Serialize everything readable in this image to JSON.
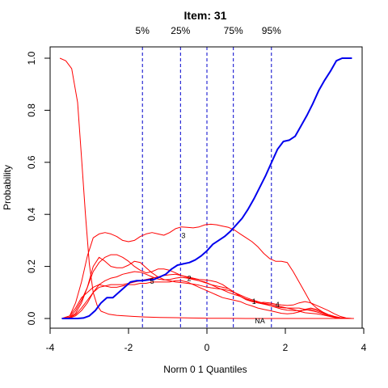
{
  "chart_data": {
    "type": "line",
    "title": "Item:  31",
    "xlabel": "Norm 0 1 Quantiles",
    "ylabel": "Probability",
    "xlim": [
      -4,
      4
    ],
    "ylim": [
      0,
      1
    ],
    "x_ticks": [
      -4,
      -2,
      0,
      2,
      4
    ],
    "y_ticks": [
      0.0,
      0.2,
      0.4,
      0.6,
      0.8,
      1.0
    ],
    "grid": false,
    "quantile_lines": [
      {
        "label": "5%",
        "x": -1.645,
        "color": "#0000cc"
      },
      {
        "label": "25%",
        "x": -0.674,
        "color": "#0000cc"
      },
      {
        "label": "",
        "x": 0.0,
        "color": "#0000cc"
      },
      {
        "label": "75%",
        "x": 0.674,
        "color": "#0000cc"
      },
      {
        "label": "95%",
        "x": 1.645,
        "color": "#0000cc"
      }
    ],
    "series": [
      {
        "label": "",
        "color": "#0000ee",
        "bold": true,
        "x": [
          -3.7,
          -3.5,
          -3.3,
          -3.15,
          -3.0,
          -2.85,
          -2.7,
          -2.55,
          -2.4,
          -2.25,
          -2.1,
          -1.95,
          -1.8,
          -1.65,
          -1.5,
          -1.35,
          -1.2,
          -1.05,
          -0.9,
          -0.75,
          -0.6,
          -0.45,
          -0.3,
          -0.15,
          0.0,
          0.15,
          0.3,
          0.45,
          0.6,
          0.75,
          0.9,
          1.05,
          1.2,
          1.35,
          1.5,
          1.65,
          1.8,
          1.95,
          2.1,
          2.25,
          2.4,
          2.55,
          2.7,
          2.85,
          3.0,
          3.15,
          3.3,
          3.45,
          3.6,
          3.7
        ],
        "y": [
          0.0,
          0.0,
          0.0,
          0.002,
          0.01,
          0.03,
          0.06,
          0.08,
          0.08,
          0.1,
          0.12,
          0.14,
          0.145,
          0.145,
          0.148,
          0.15,
          0.16,
          0.17,
          0.19,
          0.205,
          0.21,
          0.215,
          0.225,
          0.24,
          0.26,
          0.285,
          0.3,
          0.315,
          0.335,
          0.36,
          0.385,
          0.42,
          0.46,
          0.505,
          0.55,
          0.6,
          0.65,
          0.68,
          0.685,
          0.7,
          0.74,
          0.78,
          0.825,
          0.875,
          0.915,
          0.95,
          0.99,
          1.0,
          1.0,
          1.0
        ]
      },
      {
        "label": "",
        "color": "#ff0000",
        "x": [
          -3.75,
          -3.6,
          -3.45,
          -3.3,
          -3.2,
          -3.1,
          -3.0,
          -2.9,
          -2.8,
          -2.7,
          -2.5,
          -2.3,
          -2.1,
          -1.9,
          -1.6,
          -1.2,
          -0.8,
          -0.4,
          0.0,
          0.5,
          1.0,
          1.5,
          2.0,
          2.5,
          3.0,
          3.5,
          3.75
        ],
        "y": [
          1.0,
          0.99,
          0.96,
          0.83,
          0.62,
          0.4,
          0.21,
          0.1,
          0.05,
          0.028,
          0.016,
          0.012,
          0.01,
          0.008,
          0.006,
          0.004,
          0.003,
          0.002,
          0.001,
          0.001,
          0.0,
          0.0,
          0.0,
          0.0,
          0.0,
          0.0,
          0.0
        ]
      },
      {
        "label": "NA",
        "label_at": [
          1.35,
          -0.01
        ],
        "color": "#ff0000",
        "x": [
          -3.7,
          -3.5,
          -3.35,
          -3.2,
          -3.05,
          -2.9,
          -2.75,
          -2.6,
          -2.45,
          -2.3,
          -2.15,
          -2.0,
          -1.85,
          -1.7,
          -1.55,
          -1.4,
          -1.25,
          -1.1,
          -0.95,
          -0.8,
          -0.65,
          -0.5,
          -0.35,
          -0.2,
          -0.05,
          0.1,
          0.25,
          0.4,
          0.55,
          0.7,
          0.85,
          1.0,
          1.15,
          1.3,
          1.45,
          1.6,
          1.75,
          1.9,
          2.05,
          2.2,
          2.35,
          2.5,
          2.65,
          2.8,
          2.95,
          3.1,
          3.25,
          3.4,
          3.55,
          3.7
        ],
        "y": [
          0.0,
          0.01,
          0.04,
          0.08,
          0.1,
          0.12,
          0.13,
          0.125,
          0.12,
          0.12,
          0.125,
          0.13,
          0.13,
          0.135,
          0.135,
          0.14,
          0.14,
          0.14,
          0.14,
          0.145,
          0.145,
          0.14,
          0.13,
          0.12,
          0.11,
          0.1,
          0.09,
          0.08,
          0.075,
          0.07,
          0.065,
          0.055,
          0.048,
          0.04,
          0.035,
          0.03,
          0.025,
          0.02,
          0.018,
          0.02,
          0.025,
          0.035,
          0.04,
          0.035,
          0.025,
          0.015,
          0.008,
          0.003,
          0.001,
          0.0
        ]
      },
      {
        "label": "3",
        "label_at": [
          -0.6,
          0.318
        ],
        "color": "#ff0000",
        "x": [
          -3.7,
          -3.5,
          -3.35,
          -3.2,
          -3.05,
          -2.9,
          -2.75,
          -2.6,
          -2.45,
          -2.3,
          -2.15,
          -2.0,
          -1.85,
          -1.7,
          -1.55,
          -1.4,
          -1.25,
          -1.1,
          -0.95,
          -0.8,
          -0.65,
          -0.5,
          -0.35,
          -0.2,
          -0.05,
          0.1,
          0.25,
          0.4,
          0.55,
          0.7,
          0.85,
          1.0,
          1.15,
          1.3,
          1.45,
          1.6,
          1.75,
          1.9,
          2.05,
          2.2,
          2.35,
          2.5,
          2.65,
          2.8,
          2.95,
          3.1,
          3.25,
          3.4,
          3.55,
          3.7
        ],
        "y": [
          0.0,
          0.01,
          0.06,
          0.14,
          0.24,
          0.31,
          0.325,
          0.33,
          0.325,
          0.315,
          0.3,
          0.295,
          0.3,
          0.315,
          0.325,
          0.33,
          0.325,
          0.32,
          0.33,
          0.345,
          0.352,
          0.35,
          0.348,
          0.352,
          0.36,
          0.362,
          0.36,
          0.355,
          0.35,
          0.34,
          0.325,
          0.31,
          0.295,
          0.275,
          0.25,
          0.23,
          0.22,
          0.22,
          0.215,
          0.18,
          0.14,
          0.1,
          0.06,
          0.04,
          0.025,
          0.012,
          0.005,
          0.002,
          0.0,
          0.0
        ]
      },
      {
        "label": "2",
        "label_at": [
          -0.45,
          0.153
        ],
        "color": "#ff0000",
        "x": [
          -3.7,
          -3.5,
          -3.35,
          -3.2,
          -3.05,
          -2.9,
          -2.75,
          -2.6,
          -2.45,
          -2.3,
          -2.15,
          -2.0,
          -1.85,
          -1.7,
          -1.55,
          -1.4,
          -1.25,
          -1.1,
          -0.95,
          -0.8,
          -0.65,
          -0.5,
          -0.35,
          -0.2,
          -0.05,
          0.1,
          0.25,
          0.4,
          0.55,
          0.7,
          0.85,
          1.0,
          1.15,
          1.3,
          1.45,
          1.6,
          1.75,
          1.9,
          2.05,
          2.2,
          2.35,
          2.5,
          2.65,
          2.8,
          2.95,
          3.1,
          3.25,
          3.4,
          3.55,
          3.7
        ],
        "y": [
          0.0,
          0.005,
          0.03,
          0.07,
          0.12,
          0.18,
          0.215,
          0.235,
          0.245,
          0.245,
          0.235,
          0.22,
          0.2,
          0.185,
          0.175,
          0.18,
          0.19,
          0.19,
          0.185,
          0.175,
          0.165,
          0.158,
          0.152,
          0.145,
          0.14,
          0.13,
          0.12,
          0.11,
          0.1,
          0.092,
          0.085,
          0.075,
          0.068,
          0.06,
          0.055,
          0.05,
          0.045,
          0.042,
          0.04,
          0.04,
          0.04,
          0.035,
          0.03,
          0.025,
          0.018,
          0.01,
          0.005,
          0.002,
          0.0,
          0.0
        ]
      },
      {
        "label": "5",
        "label_at": [
          -1.4,
          0.143
        ],
        "color": "#ff0000",
        "x": [
          -3.7,
          -3.5,
          -3.35,
          -3.2,
          -3.05,
          -2.9,
          -2.75,
          -2.6,
          -2.45,
          -2.3,
          -2.15,
          -2.0,
          -1.85,
          -1.7,
          -1.55,
          -1.4,
          -1.25,
          -1.1,
          -0.95,
          -0.8,
          -0.65,
          -0.5,
          -0.35,
          -0.2,
          -0.05,
          0.1,
          0.25,
          0.4,
          0.55,
          0.7,
          0.85,
          1.0,
          1.15,
          1.3,
          1.45,
          1.6,
          1.75,
          1.9,
          2.05,
          2.2,
          2.35,
          2.5,
          2.65,
          2.8,
          2.95,
          3.1,
          3.25,
          3.4,
          3.55,
          3.7
        ],
        "y": [
          0.0,
          0.004,
          0.02,
          0.06,
          0.12,
          0.2,
          0.235,
          0.22,
          0.2,
          0.195,
          0.195,
          0.205,
          0.22,
          0.215,
          0.195,
          0.175,
          0.16,
          0.15,
          0.145,
          0.14,
          0.138,
          0.135,
          0.132,
          0.128,
          0.122,
          0.118,
          0.115,
          0.112,
          0.108,
          0.1,
          0.09,
          0.08,
          0.072,
          0.065,
          0.058,
          0.05,
          0.043,
          0.036,
          0.032,
          0.03,
          0.03,
          0.032,
          0.035,
          0.03,
          0.022,
          0.013,
          0.006,
          0.002,
          0.0,
          0.0
        ]
      },
      {
        "label": "1",
        "label_at": [
          1.2,
          0.065
        ],
        "color": "#ff0000",
        "x": [
          -3.7,
          -3.5,
          -3.35,
          -3.2,
          -3.05,
          -2.9,
          -2.75,
          -2.6,
          -2.45,
          -2.3,
          -2.15,
          -2.0,
          -1.85,
          -1.7,
          -1.55,
          -1.4,
          -1.25,
          -1.1,
          -0.95,
          -0.8,
          -0.65,
          -0.5,
          -0.35,
          -0.2,
          -0.05,
          0.1,
          0.25,
          0.4,
          0.55,
          0.7,
          0.85,
          1.0,
          1.15,
          1.3,
          1.45,
          1.6,
          1.75,
          1.9,
          2.05,
          2.2,
          2.35,
          2.5,
          2.65,
          2.8,
          2.95,
          3.1,
          3.25,
          3.4,
          3.55,
          3.7
        ],
        "y": [
          0.0,
          0.003,
          0.015,
          0.04,
          0.07,
          0.1,
          0.13,
          0.145,
          0.155,
          0.16,
          0.17,
          0.175,
          0.18,
          0.178,
          0.17,
          0.16,
          0.152,
          0.148,
          0.15,
          0.155,
          0.158,
          0.155,
          0.15,
          0.145,
          0.138,
          0.13,
          0.125,
          0.12,
          0.115,
          0.1,
          0.085,
          0.072,
          0.065,
          0.06,
          0.062,
          0.06,
          0.055,
          0.052,
          0.05,
          0.052,
          0.06,
          0.065,
          0.06,
          0.05,
          0.04,
          0.03,
          0.018,
          0.008,
          0.002,
          0.0
        ]
      },
      {
        "label": "4",
        "label_at": [
          1.8,
          0.053
        ],
        "color": "#ff0000",
        "x": [
          -3.7,
          -3.5,
          -3.35,
          -3.2,
          -3.05,
          -2.9,
          -2.75,
          -2.6,
          -2.45,
          -2.3,
          -2.15,
          -2.0,
          -1.85,
          -1.7,
          -1.55,
          -1.4,
          -1.25,
          -1.1,
          -0.95,
          -0.8,
          -0.65,
          -0.5,
          -0.35,
          -0.2,
          -0.05,
          0.1,
          0.25,
          0.4,
          0.55,
          0.7,
          0.85,
          1.0,
          1.15,
          1.3,
          1.45,
          1.6,
          1.75,
          1.9,
          2.05,
          2.2,
          2.35,
          2.5,
          2.65,
          2.8,
          2.95,
          3.1,
          3.25,
          3.4,
          3.55,
          3.7
        ],
        "y": [
          0.0,
          0.002,
          0.01,
          0.03,
          0.06,
          0.1,
          0.12,
          0.125,
          0.13,
          0.13,
          0.13,
          0.135,
          0.14,
          0.145,
          0.15,
          0.155,
          0.16,
          0.165,
          0.168,
          0.17,
          0.165,
          0.16,
          0.155,
          0.15,
          0.148,
          0.145,
          0.14,
          0.13,
          0.115,
          0.1,
          0.085,
          0.075,
          0.068,
          0.062,
          0.058,
          0.055,
          0.05,
          0.045,
          0.04,
          0.035,
          0.028,
          0.022,
          0.02,
          0.018,
          0.014,
          0.009,
          0.004,
          0.001,
          0.0,
          0.0
        ]
      }
    ]
  }
}
